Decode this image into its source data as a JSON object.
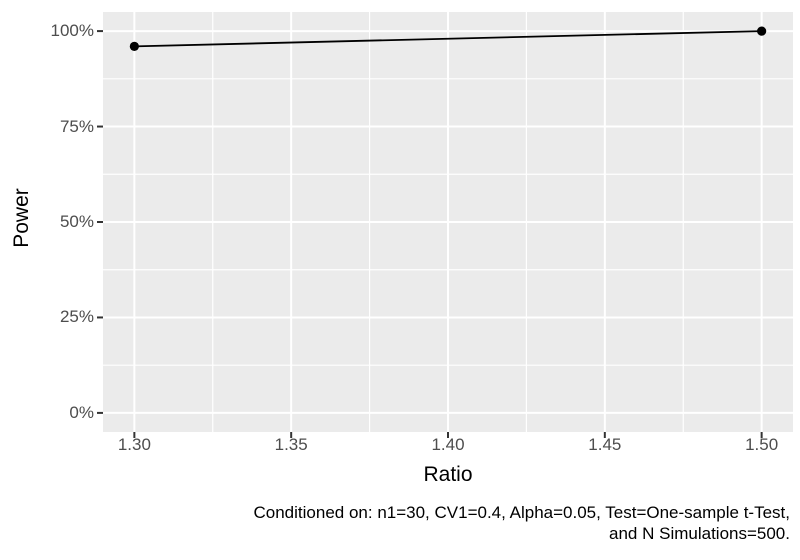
{
  "chart_data": {
    "type": "line",
    "title": "",
    "xlabel": "Ratio",
    "ylabel": "Power",
    "x": [
      1.3,
      1.5
    ],
    "series": [
      {
        "name": "Power",
        "values": [
          0.96,
          1.0
        ]
      }
    ],
    "xlim": [
      1.29,
      1.51
    ],
    "ylim": [
      -0.05,
      1.05
    ],
    "x_ticks": {
      "values": [
        1.3,
        1.35,
        1.4,
        1.45,
        1.5
      ],
      "labels": [
        "1.30",
        "1.35",
        "1.40",
        "1.45",
        "1.50"
      ]
    },
    "y_ticks": {
      "values": [
        0,
        0.25,
        0.5,
        0.75,
        1.0
      ],
      "labels": [
        "0%",
        "25%",
        "50%",
        "75%",
        "100%"
      ]
    },
    "x_minor_ticks": [
      1.325,
      1.375,
      1.425,
      1.475
    ],
    "y_minor_ticks": [
      0.125,
      0.375,
      0.625,
      0.875
    ],
    "grid": "major+minor",
    "legend": "none",
    "style": {
      "page_background": "#FFFFFF",
      "panel_background": "#EBEBEB",
      "grid_color": "#FFFFFF",
      "line_color": "#000000",
      "point_color": "#000000",
      "tick_mark_color": "#333333",
      "tick_label_color": "#4D4D4D",
      "axis_title_color": "#000000",
      "caption_color": "#000000"
    }
  },
  "caption": {
    "line1": "Conditioned on: n1=30, CV1=0.4, Alpha=0.05, Test=One-sample t-Test,",
    "line2": "and N Simulations=500."
  }
}
